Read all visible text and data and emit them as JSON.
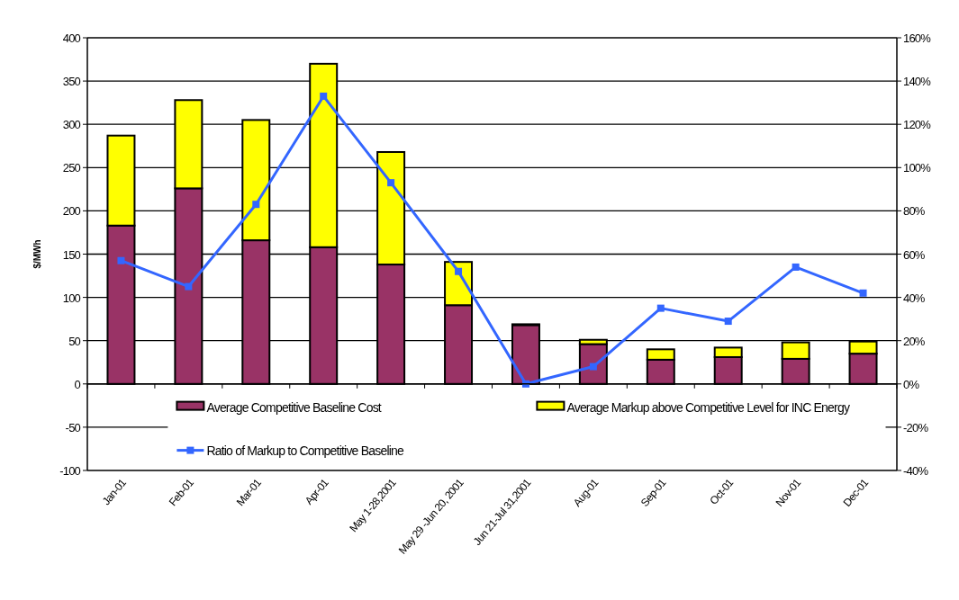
{
  "chart_data": {
    "type": "bar",
    "stacked": true,
    "ylabel": "$/MWh",
    "categories": [
      "Jan-01",
      "Feb-01",
      "Mar-01",
      "Apr-01",
      "May 1-28,2001",
      "May 29 -Jun 20, 2001",
      "Jun 21-Jul 31,2001",
      "Aug-01",
      "Sep-01",
      "Oct-01",
      "Nov-01",
      "Dec-01"
    ],
    "series": [
      {
        "name": "Average Competitive Baseline Cost",
        "color": "#993366",
        "values": [
          183,
          226,
          166,
          158,
          138,
          91,
          68,
          46,
          28,
          31,
          29,
          35
        ]
      },
      {
        "name": "Average Markup above Competitive Level for INC Energy",
        "color": "#ffff00",
        "values": [
          104,
          102,
          139,
          212,
          130,
          50,
          1,
          5,
          12,
          11,
          19,
          14
        ]
      },
      {
        "name": "Ratio of Markup to Competitive Baseline",
        "type": "line",
        "axis": "y2",
        "color": "#3366ff",
        "marker": "square",
        "values": [
          57,
          45,
          83,
          133,
          93,
          52,
          0,
          8,
          35,
          29,
          54,
          42
        ]
      }
    ],
    "ylim": [
      -100,
      400
    ],
    "yticks": [
      -100,
      -50,
      0,
      50,
      100,
      150,
      200,
      250,
      300,
      350,
      400
    ],
    "y2lim": [
      -40,
      160
    ],
    "y2ticks": [
      {
        "value": -40,
        "label": "-40%"
      },
      {
        "value": -20,
        "label": "-20%"
      },
      {
        "value": 0,
        "label": "0%"
      },
      {
        "value": 20,
        "label": "20%"
      },
      {
        "value": 40,
        "label": "40%"
      },
      {
        "value": 60,
        "label": "60%"
      },
      {
        "value": 80,
        "label": "80%"
      },
      {
        "value": 100,
        "label": "100%"
      },
      {
        "value": 120,
        "label": "120%"
      },
      {
        "value": 140,
        "label": "140%"
      },
      {
        "value": 160,
        "label": "160%"
      }
    ],
    "grid": "y",
    "legend": "bottom"
  }
}
